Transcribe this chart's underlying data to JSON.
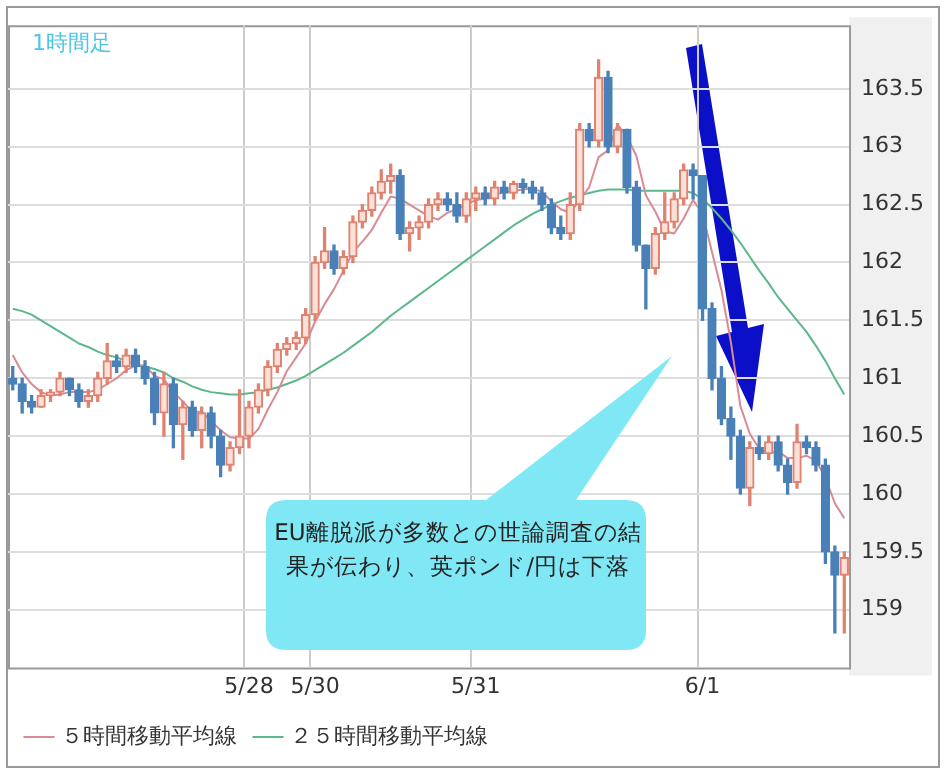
{
  "chart_data": {
    "type": "candlestick",
    "title": "1時間足",
    "categories": [
      null,
      null,
      null,
      null,
      null,
      null,
      null,
      null,
      null,
      null,
      null,
      null,
      null,
      null,
      null,
      null,
      null,
      null,
      null,
      null,
      null,
      null,
      null,
      null,
      null,
      "5/28",
      null,
      null,
      null,
      null,
      null,
      null,
      "5/30",
      null,
      null,
      null,
      null,
      null,
      null,
      null,
      null,
      null,
      null,
      null,
      null,
      null,
      null,
      null,
      null,
      "5/31",
      null,
      null,
      null,
      null,
      null,
      null,
      null,
      null,
      null,
      null,
      null,
      null,
      null,
      null,
      null,
      null,
      null,
      null,
      null,
      null,
      null,
      null,
      null,
      "6/1",
      null,
      null,
      null,
      null,
      null,
      null,
      null,
      null,
      null,
      null,
      null,
      null,
      null,
      null,
      null
    ],
    "ohlc": [
      [
        161.0,
        161.1,
        160.9,
        160.95
      ],
      [
        160.95,
        161.0,
        160.7,
        160.8
      ],
      [
        160.8,
        160.85,
        160.7,
        160.75
      ],
      [
        160.75,
        160.9,
        160.75,
        160.85
      ],
      [
        160.85,
        160.9,
        160.8,
        160.88
      ],
      [
        160.88,
        161.05,
        160.85,
        161.0
      ],
      [
        161.0,
        161.0,
        160.85,
        160.9
      ],
      [
        160.9,
        160.95,
        160.75,
        160.8
      ],
      [
        160.8,
        160.9,
        160.75,
        160.85
      ],
      [
        160.85,
        161.05,
        160.8,
        161.0
      ],
      [
        161.0,
        161.3,
        160.95,
        161.15
      ],
      [
        161.15,
        161.2,
        161.05,
        161.1
      ],
      [
        161.1,
        161.25,
        161.05,
        161.2
      ],
      [
        161.2,
        161.25,
        161.05,
        161.1
      ],
      [
        161.1,
        161.15,
        160.95,
        161.0
      ],
      [
        161.0,
        161.05,
        160.6,
        160.7
      ],
      [
        160.7,
        161.05,
        160.5,
        160.95
      ],
      [
        160.95,
        161.0,
        160.4,
        160.6
      ],
      [
        160.6,
        160.8,
        160.3,
        160.75
      ],
      [
        160.75,
        160.8,
        160.5,
        160.55
      ],
      [
        160.55,
        160.75,
        160.4,
        160.7
      ],
      [
        160.7,
        160.75,
        160.4,
        160.5
      ],
      [
        160.5,
        160.55,
        160.15,
        160.25
      ],
      [
        160.25,
        160.45,
        160.2,
        160.4
      ],
      [
        160.4,
        160.9,
        160.35,
        160.5
      ],
      [
        160.5,
        160.8,
        160.4,
        160.75
      ],
      [
        160.75,
        160.95,
        160.7,
        160.9
      ],
      [
        160.9,
        161.15,
        160.85,
        161.1
      ],
      [
        161.1,
        161.3,
        161.05,
        161.25
      ],
      [
        161.25,
        161.35,
        161.2,
        161.3
      ],
      [
        161.3,
        161.4,
        161.25,
        161.35
      ],
      [
        161.35,
        161.6,
        161.3,
        161.55
      ],
      [
        161.55,
        162.05,
        161.5,
        162.0
      ],
      [
        162.0,
        162.3,
        161.95,
        162.1
      ],
      [
        162.1,
        162.15,
        161.9,
        161.95
      ],
      [
        161.95,
        162.1,
        161.9,
        162.05
      ],
      [
        162.05,
        162.4,
        162.0,
        162.35
      ],
      [
        162.35,
        162.5,
        162.3,
        162.45
      ],
      [
        162.45,
        162.65,
        162.4,
        162.6
      ],
      [
        162.6,
        162.8,
        162.55,
        162.7
      ],
      [
        162.7,
        162.85,
        162.6,
        162.75
      ],
      [
        162.75,
        162.8,
        162.2,
        162.25
      ],
      [
        162.25,
        162.35,
        162.1,
        162.3
      ],
      [
        162.3,
        162.4,
        162.2,
        162.35
      ],
      [
        162.35,
        162.55,
        162.3,
        162.5
      ],
      [
        162.5,
        162.6,
        162.45,
        162.55
      ],
      [
        162.55,
        162.6,
        162.45,
        162.5
      ],
      [
        162.5,
        162.6,
        162.35,
        162.4
      ],
      [
        162.4,
        162.6,
        162.35,
        162.55
      ],
      [
        162.55,
        162.65,
        162.45,
        162.6
      ],
      [
        162.6,
        162.65,
        162.5,
        162.55
      ],
      [
        162.55,
        162.7,
        162.5,
        162.65
      ],
      [
        162.65,
        162.7,
        162.55,
        162.6
      ],
      [
        162.6,
        162.7,
        162.55,
        162.68
      ],
      [
        162.68,
        162.72,
        162.6,
        162.65
      ],
      [
        162.65,
        162.7,
        162.55,
        162.6
      ],
      [
        162.6,
        162.65,
        162.45,
        162.5
      ],
      [
        162.5,
        162.55,
        162.25,
        162.3
      ],
      [
        162.3,
        162.4,
        162.2,
        162.25
      ],
      [
        162.25,
        162.6,
        162.2,
        162.5
      ],
      [
        162.5,
        163.2,
        162.45,
        163.15
      ],
      [
        163.15,
        163.2,
        163.0,
        163.05
      ],
      [
        163.05,
        163.75,
        163.0,
        163.6
      ],
      [
        163.6,
        163.65,
        162.95,
        163.0
      ],
      [
        163.0,
        163.2,
        162.95,
        163.15
      ],
      [
        163.15,
        163.15,
        162.6,
        162.65
      ],
      [
        162.65,
        162.7,
        162.1,
        162.15
      ],
      [
        162.15,
        162.15,
        161.6,
        161.95
      ],
      [
        161.95,
        162.3,
        161.9,
        162.25
      ],
      [
        162.25,
        162.6,
        162.2,
        162.35
      ],
      [
        162.35,
        162.6,
        162.3,
        162.55
      ],
      [
        162.55,
        162.85,
        162.5,
        162.8
      ],
      [
        162.8,
        162.85,
        162.55,
        162.75
      ],
      [
        162.75,
        162.75,
        161.5,
        161.6
      ],
      [
        161.6,
        161.65,
        160.9,
        161.0
      ],
      [
        161.0,
        161.1,
        160.6,
        160.65
      ],
      [
        160.65,
        160.75,
        160.3,
        160.5
      ],
      [
        160.5,
        160.55,
        160.0,
        160.05
      ],
      [
        160.05,
        160.45,
        159.9,
        160.4
      ],
      [
        160.4,
        160.5,
        160.3,
        160.35
      ],
      [
        160.35,
        160.5,
        160.3,
        160.45
      ],
      [
        160.45,
        160.5,
        160.2,
        160.25
      ],
      [
        160.25,
        160.3,
        160.0,
        160.1
      ],
      [
        160.1,
        160.6,
        160.05,
        160.45
      ],
      [
        160.45,
        160.5,
        160.35,
        160.4
      ],
      [
        160.4,
        160.45,
        160.2,
        160.25
      ],
      [
        160.25,
        160.3,
        159.4,
        159.5
      ],
      [
        159.5,
        159.55,
        158.8,
        159.3
      ],
      [
        159.3,
        159.5,
        158.8,
        159.45
      ]
    ],
    "series": [
      {
        "name": "５時間移動平均線",
        "type": "line",
        "color": "#d98a93",
        "values": [
          161.2,
          161.05,
          160.95,
          160.88,
          160.85,
          160.86,
          160.88,
          160.88,
          160.88,
          160.9,
          160.95,
          161.0,
          161.07,
          161.11,
          161.11,
          161.02,
          160.99,
          160.88,
          160.8,
          160.71,
          160.71,
          160.63,
          160.55,
          160.49,
          160.48,
          160.48,
          160.56,
          160.73,
          160.88,
          161.06,
          161.18,
          161.3,
          161.49,
          161.64,
          161.77,
          161.93,
          162.09,
          162.18,
          162.28,
          162.43,
          162.57,
          162.55,
          162.5,
          162.45,
          162.4,
          162.37,
          162.43,
          162.46,
          162.5,
          162.54,
          162.55,
          162.58,
          162.61,
          162.62,
          162.63,
          162.64,
          162.61,
          162.53,
          162.46,
          162.43,
          162.54,
          162.65,
          162.91,
          162.97,
          163.19,
          163.09,
          162.92,
          162.58,
          162.44,
          162.27,
          162.25,
          162.38,
          162.54,
          162.42,
          162.09,
          161.76,
          161.31,
          160.76,
          160.52,
          160.39,
          160.35,
          160.37,
          160.31,
          160.31,
          160.33,
          160.29,
          160.14,
          159.92,
          159.79
        ]
      },
      {
        "name": "２５時間移動平均線",
        "type": "line",
        "color": "#5cb88c",
        "values": [
          161.6,
          161.58,
          161.55,
          161.5,
          161.45,
          161.4,
          161.35,
          161.3,
          161.27,
          161.23,
          161.2,
          161.18,
          161.15,
          161.12,
          161.1,
          161.08,
          161.05,
          161.0,
          160.97,
          160.93,
          160.9,
          160.88,
          160.87,
          160.86,
          160.86,
          160.87,
          160.88,
          160.9,
          160.92,
          160.95,
          160.98,
          161.02,
          161.07,
          161.12,
          161.17,
          161.22,
          161.28,
          161.34,
          161.4,
          161.47,
          161.54,
          161.6,
          161.66,
          161.72,
          161.78,
          161.84,
          161.9,
          161.96,
          162.02,
          162.08,
          162.14,
          162.2,
          162.26,
          162.32,
          162.37,
          162.42,
          162.46,
          162.5,
          162.53,
          162.56,
          162.58,
          162.6,
          162.62,
          162.63,
          162.63,
          162.63,
          162.62,
          162.62,
          162.62,
          162.62,
          162.62,
          162.62,
          162.6,
          162.55,
          162.47,
          162.38,
          162.28,
          162.17,
          162.05,
          161.93,
          161.82,
          161.7,
          161.6,
          161.5,
          161.4,
          161.28,
          161.15,
          161.0,
          160.86
        ]
      }
    ],
    "ylim": [
      158.5,
      164.05
    ],
    "yticks": [
      159,
      159.5,
      160,
      160.5,
      161,
      161.5,
      162,
      162.5,
      163,
      163.5
    ],
    "grid": true,
    "legend": "bottom",
    "annotations": [
      "EU離脱派が多数との世論調査の結果が伝わり、英ポンド/円は下落"
    ]
  }
}
